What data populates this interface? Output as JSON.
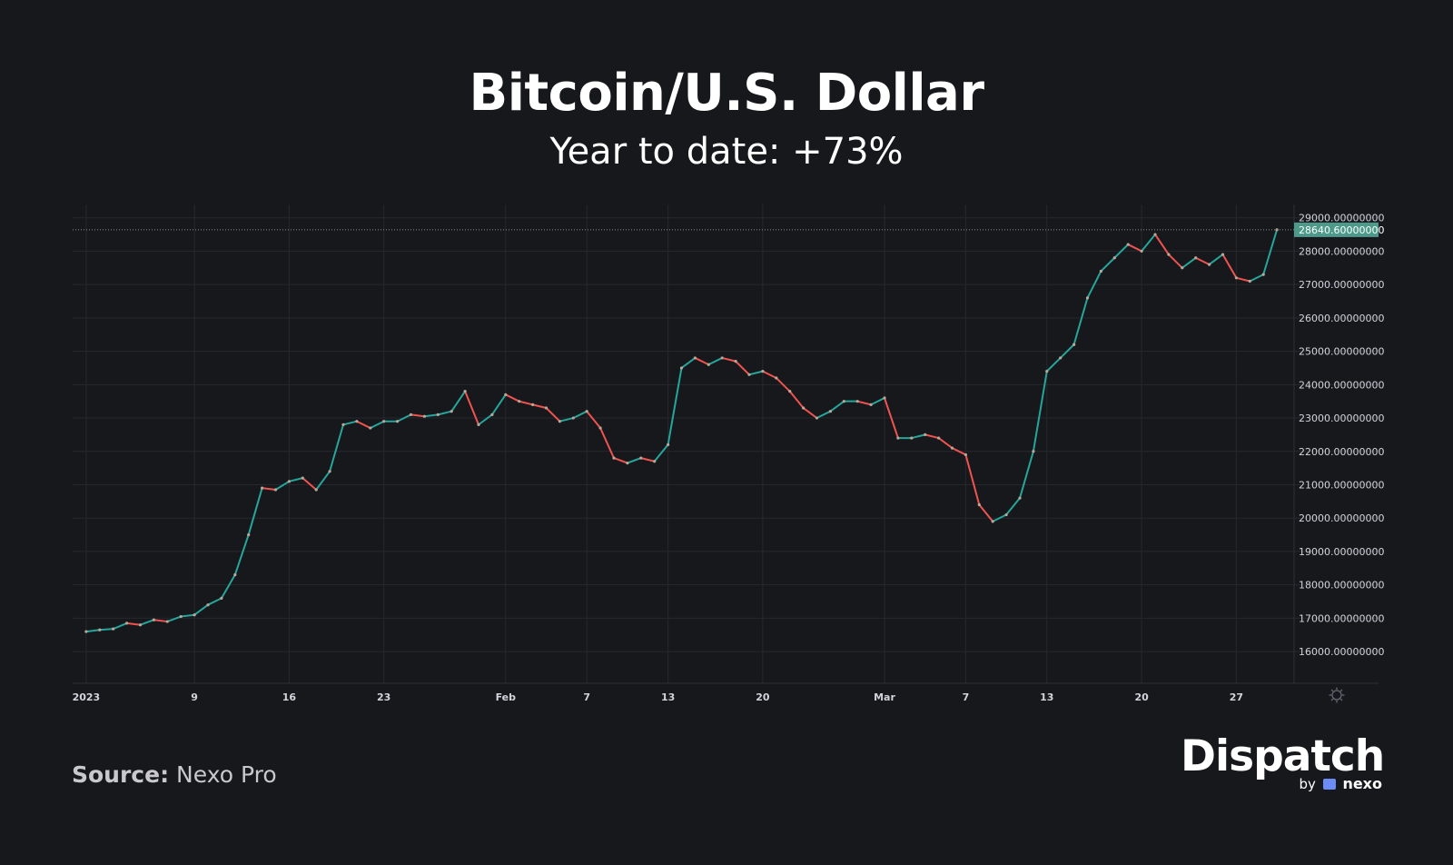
{
  "header": {
    "title": "Bitcoin/U.S. Dollar",
    "subtitle": "Year to date: +73%"
  },
  "footer": {
    "source_label": "Source:",
    "source_value": "Nexo Pro",
    "brand_name": "Dispatch",
    "brand_by": "by",
    "brand_partner": "nexo"
  },
  "colors": {
    "background": "#17181c",
    "grid": "#26282e",
    "up": "#26a69a",
    "down": "#ef5350",
    "wick_mixed": "#b8a89a",
    "price_tag": "#4d9a8a",
    "axis_text": "#d1d4dc"
  },
  "chart_data": {
    "type": "line",
    "title": "Bitcoin/U.S. Dollar",
    "subtitle": "Year to date: +73%",
    "xlabel": "",
    "ylabel": "",
    "grid": true,
    "x_tick_labels": [
      "2023",
      "9",
      "16",
      "23",
      "Feb",
      "7",
      "13",
      "20",
      "Mar",
      "7",
      "13",
      "20",
      "27"
    ],
    "y_tick_labels": [
      "29000.00000000",
      "28000.00000000",
      "27000.00000000",
      "26000.00000000",
      "25000.00000000",
      "24000.00000000",
      "23000.00000000",
      "22000.00000000",
      "21000.00000000",
      "20000.00000000",
      "19000.00000000",
      "18000.00000000",
      "17000.00000000",
      "16000.00000000"
    ],
    "ylim": [
      15050,
      29400
    ],
    "last_price": 28640.6,
    "last_price_label": "28640.60000000",
    "series": [
      {
        "x": [
          "2023-01-01",
          "2023-01-02",
          "2023-01-03",
          "2023-01-04",
          "2023-01-05",
          "2023-01-06",
          "2023-01-07",
          "2023-01-08",
          "2023-01-09",
          "2023-01-10",
          "2023-01-11",
          "2023-01-12",
          "2023-01-13",
          "2023-01-14",
          "2023-01-15",
          "2023-01-16",
          "2023-01-17",
          "2023-01-18",
          "2023-01-19",
          "2023-01-20",
          "2023-01-21",
          "2023-01-22",
          "2023-01-23",
          "2023-01-24",
          "2023-01-25",
          "2023-01-26",
          "2023-01-27",
          "2023-01-28",
          "2023-01-29",
          "2023-01-30",
          "2023-01-31",
          "2023-02-01",
          "2023-02-02",
          "2023-02-03",
          "2023-02-04",
          "2023-02-05",
          "2023-02-06",
          "2023-02-07",
          "2023-02-08",
          "2023-02-09",
          "2023-02-10",
          "2023-02-11",
          "2023-02-12",
          "2023-02-13",
          "2023-02-14",
          "2023-02-15",
          "2023-02-16",
          "2023-02-17",
          "2023-02-18",
          "2023-02-19",
          "2023-02-20",
          "2023-02-21",
          "2023-02-22",
          "2023-02-23",
          "2023-02-24",
          "2023-02-25",
          "2023-02-26",
          "2023-02-27",
          "2023-02-28",
          "2023-03-01",
          "2023-03-02",
          "2023-03-03",
          "2023-03-04",
          "2023-03-05",
          "2023-03-06",
          "2023-03-07",
          "2023-03-08",
          "2023-03-09",
          "2023-03-10",
          "2023-03-11",
          "2023-03-12",
          "2023-03-13",
          "2023-03-14",
          "2023-03-15",
          "2023-03-16",
          "2023-03-17",
          "2023-03-18",
          "2023-03-19",
          "2023-03-20",
          "2023-03-21",
          "2023-03-22",
          "2023-03-23",
          "2023-03-24",
          "2023-03-25",
          "2023-03-26",
          "2023-03-27",
          "2023-03-28",
          "2023-03-29",
          "2023-03-30"
        ],
        "values": [
          16600,
          16650,
          16680,
          16850,
          16800,
          16950,
          16900,
          17050,
          17100,
          17400,
          17600,
          18300,
          19500,
          20900,
          20850,
          21100,
          21200,
          20850,
          21400,
          22800,
          22900,
          22700,
          22900,
          22900,
          23100,
          23050,
          23100,
          23200,
          23800,
          22800,
          23100,
          23700,
          23500,
          23400,
          23300,
          22900,
          23000,
          23200,
          22700,
          21800,
          21650,
          21800,
          21700,
          22200,
          24500,
          24800,
          24600,
          24800,
          24700,
          24300,
          24400,
          24200,
          23800,
          23300,
          23000,
          23200,
          23500,
          23500,
          23400,
          23600,
          22400,
          22400,
          22500,
          22400,
          22100,
          21900,
          20400,
          19900,
          20100,
          20600,
          22000,
          24400,
          24800,
          25200,
          26600,
          27400,
          27800,
          28200,
          28000,
          28500,
          27900,
          27500,
          27800,
          27600,
          27900,
          27200,
          27100,
          27300,
          28640.6
        ]
      }
    ]
  }
}
